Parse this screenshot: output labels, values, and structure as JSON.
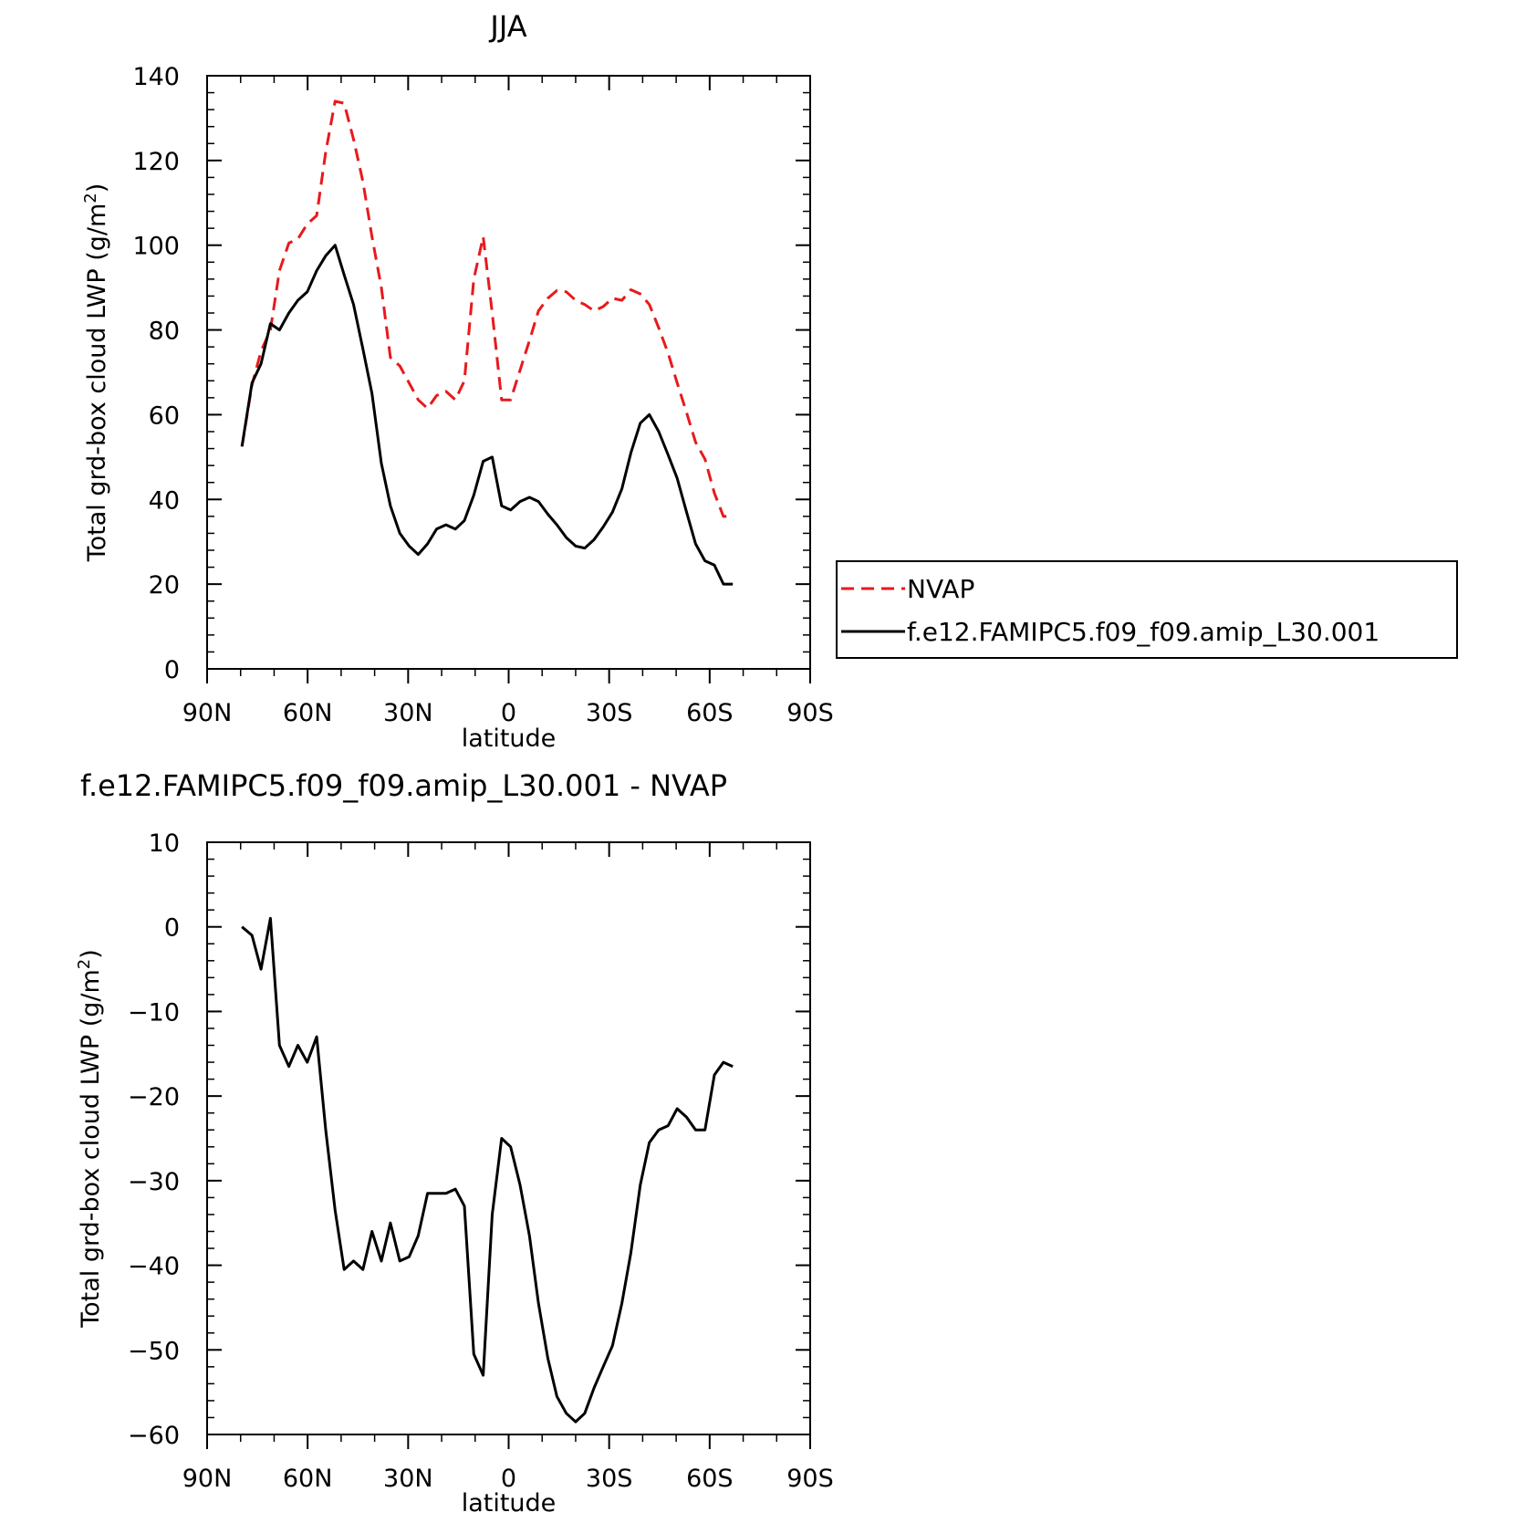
{
  "chart_data": [
    {
      "type": "line",
      "title": "JJA",
      "xlabel": "latitude",
      "ylabel": "Total grd-box cloud LWP (g/m²)",
      "ylabel_parts": {
        "main": "Total grd-box cloud LWP (g/m",
        "sup": "2",
        "close": ")"
      },
      "xlim": [
        90,
        -90
      ],
      "ylim": [
        0,
        140
      ],
      "x_ticks": [
        90,
        60,
        30,
        0,
        -30,
        -60,
        -90
      ],
      "x_tick_labels": [
        "90N",
        "60N",
        "30N",
        "0",
        "30S",
        "60S",
        "90S"
      ],
      "y_ticks": [
        0,
        20,
        40,
        60,
        80,
        100,
        120,
        140
      ],
      "y_tick_labels": [
        "0",
        "20",
        "40",
        "60",
        "80",
        "100",
        "120",
        "140"
      ],
      "grid": false,
      "legend_position": "right",
      "series": [
        {
          "name": "NVAP",
          "color": "#e8191c",
          "dash": true,
          "x": [
            79.6,
            76.6,
            73.9,
            71.1,
            68.4,
            65.6,
            62.9,
            60.1,
            57.3,
            54.6,
            51.8,
            49.1,
            46.3,
            43.5,
            40.8,
            38.0,
            35.3,
            32.5,
            29.7,
            27.0,
            24.2,
            21.5,
            18.7,
            15.9,
            13.2,
            10.4,
            7.6,
            4.9,
            2.1,
            -0.6,
            -3.4,
            -6.2,
            -8.9,
            -11.7,
            -14.4,
            -17.2,
            -20.0,
            -22.7,
            -25.5,
            -28.2,
            -31.0,
            -33.8,
            -36.5,
            -39.3,
            -42.0,
            -44.8,
            -47.6,
            -50.3,
            -53.1,
            -55.8,
            -58.6,
            -61.4,
            -64.1,
            -66.9
          ],
          "values": [
            52.5,
            67.0,
            75.0,
            80.0,
            94.0,
            100.5,
            101.5,
            105.0,
            107.0,
            122.0,
            134.0,
            133.5,
            125.0,
            115.0,
            102.0,
            90.0,
            73.5,
            71.5,
            67.5,
            63.5,
            61.5,
            64.5,
            65.5,
            63.5,
            68.0,
            92.0,
            102.0,
            84.0,
            63.5,
            63.5,
            70.5,
            77.5,
            84.5,
            87.5,
            89.3,
            89.0,
            87.0,
            86.0,
            84.5,
            85.5,
            87.5,
            87.0,
            89.5,
            88.5,
            86.0,
            80.5,
            74.5,
            67.5,
            60.5,
            53.5,
            49.5,
            41.5,
            36.0,
            36.0
          ]
        },
        {
          "name": "f.e12.FAMIPC5.f09_f09.amip_L30.001",
          "color": "#000000",
          "dash": false,
          "x": [
            79.6,
            76.6,
            73.9,
            71.1,
            68.4,
            65.6,
            62.9,
            60.1,
            57.3,
            54.6,
            51.8,
            49.1,
            46.3,
            43.5,
            40.8,
            38.0,
            35.3,
            32.5,
            29.7,
            27.0,
            24.2,
            21.5,
            18.7,
            15.9,
            13.2,
            10.4,
            7.6,
            4.9,
            2.1,
            -0.6,
            -3.4,
            -6.2,
            -8.9,
            -11.7,
            -14.4,
            -17.2,
            -20.0,
            -22.7,
            -25.5,
            -28.2,
            -31.0,
            -33.8,
            -36.5,
            -39.3,
            -42.0,
            -44.8,
            -47.6,
            -50.3,
            -53.1,
            -55.8,
            -58.6,
            -61.4,
            -64.1,
            -66.9
          ],
          "values": [
            52.5,
            67.5,
            72.0,
            81.5,
            80.0,
            84.0,
            87.0,
            89.0,
            94.0,
            97.5,
            100.0,
            93.0,
            86.0,
            75.5,
            65.0,
            48.5,
            38.5,
            32.0,
            29.0,
            27.0,
            29.5,
            33.0,
            34.0,
            33.0,
            35.0,
            41.0,
            49.0,
            50.0,
            38.5,
            37.5,
            39.5,
            40.5,
            39.5,
            36.5,
            34.0,
            31.0,
            29.0,
            28.5,
            30.5,
            33.5,
            37.0,
            42.5,
            51.0,
            58.0,
            60.0,
            56.0,
            50.5,
            45.0,
            37.0,
            29.5,
            25.5,
            24.5,
            20.0,
            20.0
          ]
        }
      ]
    },
    {
      "type": "line",
      "title": "f.e12.FAMIPC5.f09_f09.amip_L30.001 - NVAP",
      "xlabel": "latitude",
      "ylabel": "Total grd-box cloud LWP (g/m²)",
      "ylabel_parts": {
        "main": "Total grd-box cloud LWP (g/m",
        "sup": "2",
        "close": ")"
      },
      "xlim": [
        90,
        -90
      ],
      "ylim": [
        -60,
        10
      ],
      "x_ticks": [
        90,
        60,
        30,
        0,
        -30,
        -60,
        -90
      ],
      "x_tick_labels": [
        "90N",
        "60N",
        "30N",
        "0",
        "30S",
        "60S",
        "90S"
      ],
      "y_ticks": [
        -60,
        -50,
        -40,
        -30,
        -20,
        -10,
        0,
        10
      ],
      "y_tick_labels": [
        "−60",
        "−50",
        "−40",
        "−30",
        "−20",
        "−10",
        "0",
        "10"
      ],
      "grid": false,
      "series": [
        {
          "color": "#000000",
          "dash": false,
          "x": [
            79.6,
            76.6,
            73.9,
            71.1,
            68.4,
            65.6,
            62.9,
            60.1,
            57.3,
            54.6,
            51.8,
            49.1,
            46.3,
            43.5,
            40.8,
            38.0,
            35.3,
            32.5,
            29.7,
            27.0,
            24.2,
            21.5,
            18.7,
            15.9,
            13.2,
            10.4,
            7.6,
            4.9,
            2.1,
            -0.6,
            -3.4,
            -6.2,
            -8.9,
            -11.7,
            -14.4,
            -17.2,
            -20.0,
            -22.7,
            -25.5,
            -28.2,
            -31.0,
            -33.8,
            -36.5,
            -39.3,
            -42.0,
            -44.8,
            -47.6,
            -50.3,
            -53.1,
            -55.8,
            -58.6,
            -61.4,
            -64.1,
            -66.9
          ],
          "values": [
            0.0,
            -1.0,
            -5.0,
            1.0,
            -14.0,
            -16.5,
            -14.0,
            -16.0,
            -13.0,
            -24.0,
            -33.5,
            -40.5,
            -39.5,
            -40.5,
            -36.0,
            -39.5,
            -35.0,
            -39.5,
            -39.0,
            -36.5,
            -31.5,
            -31.5,
            -31.5,
            -31.0,
            -33.0,
            -50.5,
            -53.0,
            -34.0,
            -25.0,
            -26.0,
            -30.5,
            -36.5,
            -44.5,
            -51.0,
            -55.5,
            -57.5,
            -58.5,
            -57.5,
            -54.5,
            -52.0,
            -49.5,
            -44.5,
            -38.5,
            -30.5,
            -25.5,
            -24.0,
            -23.5,
            -21.5,
            -22.5,
            -24.0,
            -24.0,
            -17.5,
            -16.0,
            -16.5
          ]
        }
      ]
    }
  ]
}
